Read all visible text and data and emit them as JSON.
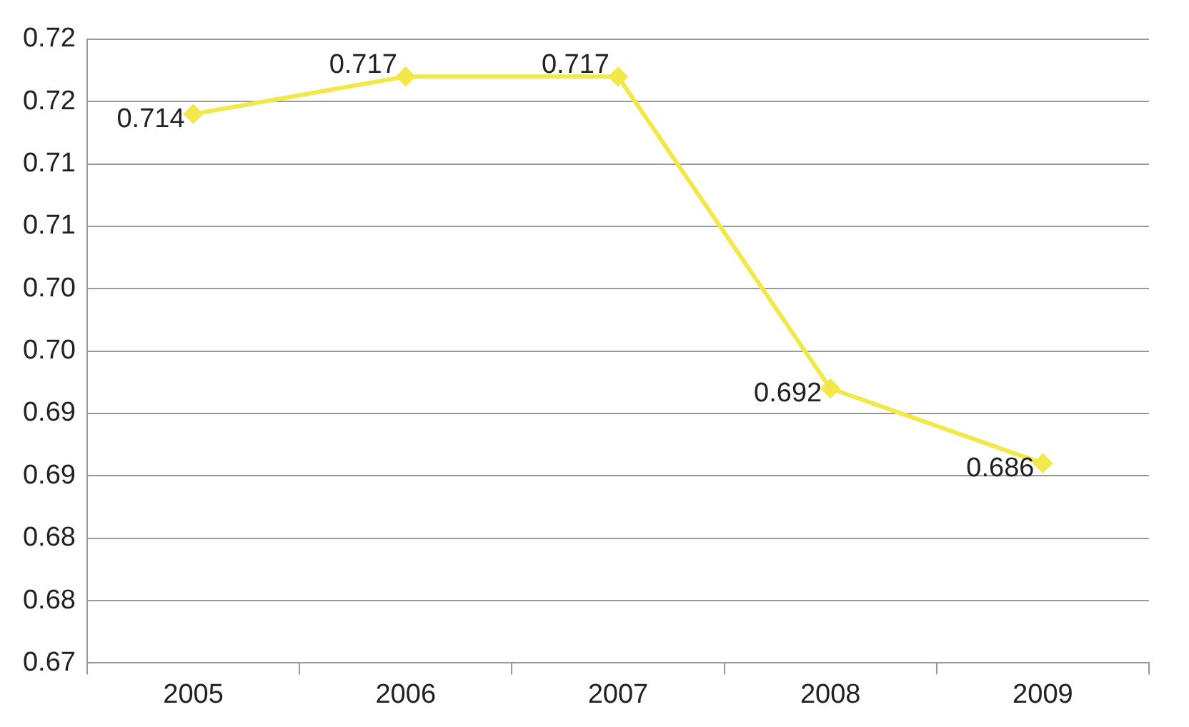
{
  "chart_data": {
    "type": "line",
    "categories": [
      "2005",
      "2006",
      "2007",
      "2008",
      "2009"
    ],
    "series": [
      {
        "color": "#f2e84a",
        "values": [
          0.714,
          0.717,
          0.717,
          0.692,
          0.686
        ]
      }
    ],
    "ylim": [
      0.67,
      0.72
    ],
    "yticks": [
      0.67,
      {
        "value": 0.675,
        "label": "0.68"
      },
      0.68,
      {
        "value": 0.685,
        "label": "0.69"
      },
      0.69,
      {
        "value": 0.695,
        "label": "0.70"
      },
      {
        "value": 0.7,
        "label": "0.70"
      },
      {
        "value": 0.705,
        "label": "0.71"
      },
      0.71,
      {
        "value": 0.715,
        "label": "0.72"
      },
      0.72
    ],
    "grid": "y",
    "legend": false,
    "marker": "diamond",
    "line_style": "solid",
    "data_labels": true
  }
}
